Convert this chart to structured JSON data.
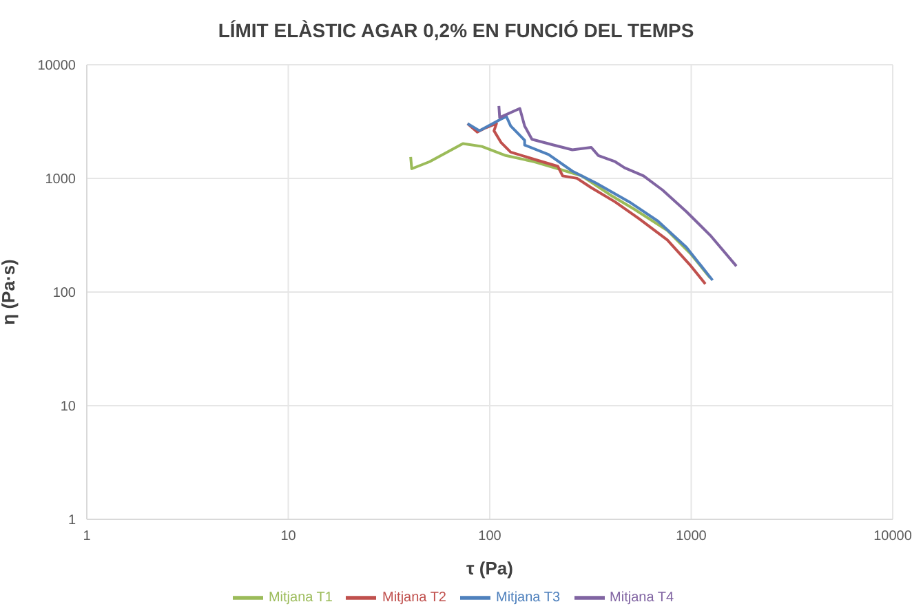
{
  "chart_data": {
    "type": "line",
    "title": "LÍMIT ELÀSTIC AGAR 0,2% EN FUNCIÓ DEL TEMPS",
    "xlabel": "τ (Pa)",
    "ylabel": "η (Pa·s)",
    "log": "xy",
    "xlim": [
      1,
      10000
    ],
    "xticks": [
      1,
      10,
      100,
      1000,
      10000
    ],
    "ylim": [
      1,
      10000
    ],
    "yticks": [
      1,
      10,
      100,
      1000,
      10000
    ],
    "grid": true,
    "legend": "bottom",
    "marker": "none",
    "line_style": "solid",
    "series": [
      {
        "name": "Mitjana T1",
        "color": "#9bbb59",
        "x": [
          40.5,
          41,
          50.3,
          73.6,
          91.4,
          120,
          166,
          218,
          286,
          396,
          520,
          761,
          998,
          1242
        ],
        "values": [
          1545,
          1216,
          1403,
          2024,
          1910,
          1589,
          1403,
          1216,
          1052,
          716,
          537,
          348,
          215,
          133
        ]
      },
      {
        "name": "Mitjana T2",
        "color": "#c0504d",
        "x": [
          77.6,
          86.7,
          94,
          108,
          105,
          114,
          127,
          166,
          218,
          230,
          271,
          319,
          419,
          550,
          761,
          998,
          1175
        ],
        "values": [
          3034,
          2553,
          2752,
          3034,
          2624,
          2061,
          1703,
          1473,
          1276,
          1052,
          1002,
          828,
          621,
          443,
          287,
          169,
          118
        ]
      },
      {
        "name": "Mitjana T3",
        "color": "#4f81bd",
        "x": [
          77.6,
          89,
          114,
          121,
          127,
          149,
          149,
          196,
          257,
          337,
          493,
          683,
          946,
          1276
        ],
        "values": [
          3034,
          2624,
          3337,
          3500,
          2891,
          2163,
          1967,
          1622,
          1158,
          910,
          621,
          421,
          248,
          127
        ]
      },
      {
        "name": "Mitjana T4",
        "color": "#8064a2",
        "x": [
          111,
          112,
          141,
          149,
          162,
          207,
          257,
          319,
          346,
          419,
          467,
          580,
          721,
          946,
          1242,
          1675
        ],
        "values": [
          4330,
          3434,
          4120,
          2891,
          2208,
          1967,
          1786,
          1875,
          1589,
          1403,
          1239,
          1052,
          789,
          510,
          316,
          169
        ]
      }
    ]
  }
}
